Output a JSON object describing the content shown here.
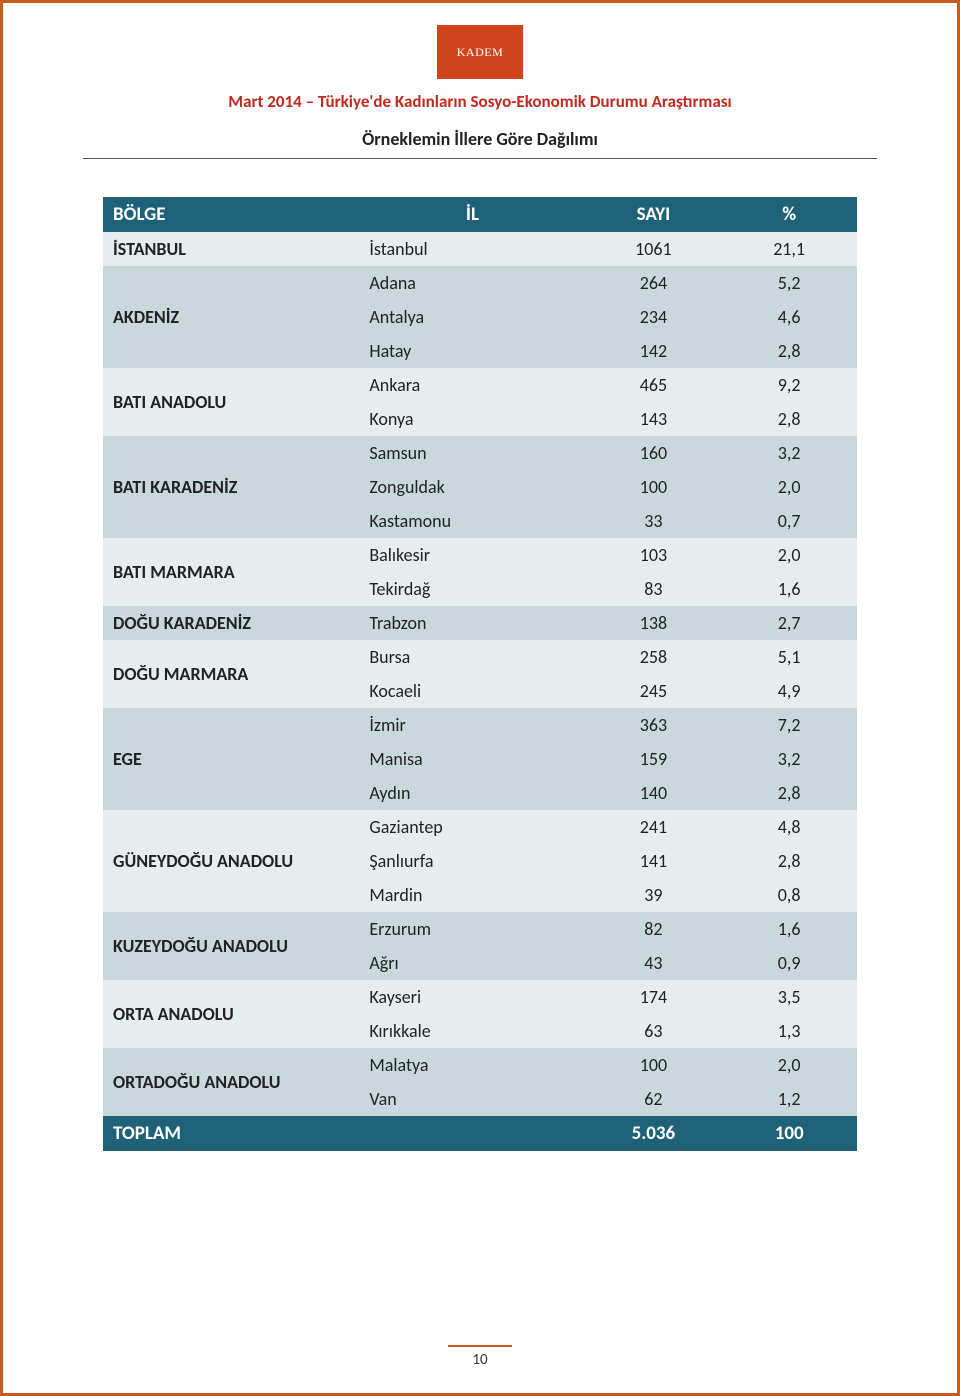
{
  "logo_text": "KADEM",
  "doc_title": "Mart 2014 – Türkiye'de Kadınların Sosyo-Ekonomik Durumu Araştırması",
  "section_title": "Örneklemin İllere Göre Dağılımı",
  "page_number": "10",
  "colors": {
    "page_border": "#c75a1f",
    "logo_bg": "#d1451e",
    "title_text": "#c22a1f",
    "header_row_bg": "#1f6177",
    "header_row_text": "#ffffff",
    "band_a": "#e6edef",
    "band_b": "#c9d8dd",
    "text": "#222222"
  },
  "table": {
    "headers": {
      "region": "BÖLGE",
      "il": "İL",
      "count": "SAYI",
      "pct": "%"
    },
    "footer": {
      "label": "TOPLAM",
      "count": "5.036",
      "pct": "100"
    },
    "groups": [
      {
        "region": "İSTANBUL",
        "band": "a",
        "rows": [
          {
            "il": "İstanbul",
            "count": "1061",
            "pct": "21,1"
          }
        ]
      },
      {
        "region": "AKDENİZ",
        "band": "b",
        "rows": [
          {
            "il": "Adana",
            "count": "264",
            "pct": "5,2"
          },
          {
            "il": "Antalya",
            "count": "234",
            "pct": "4,6"
          },
          {
            "il": "Hatay",
            "count": "142",
            "pct": "2,8"
          }
        ]
      },
      {
        "region": "BATI ANADOLU",
        "band": "a",
        "rows": [
          {
            "il": "Ankara",
            "count": "465",
            "pct": "9,2"
          },
          {
            "il": "Konya",
            "count": "143",
            "pct": "2,8"
          }
        ]
      },
      {
        "region": "BATI KARADENİZ",
        "band": "b",
        "rows": [
          {
            "il": "Samsun",
            "count": "160",
            "pct": "3,2"
          },
          {
            "il": "Zonguldak",
            "count": "100",
            "pct": "2,0"
          },
          {
            "il": "Kastamonu",
            "count": "33",
            "pct": "0,7"
          }
        ]
      },
      {
        "region": "BATI MARMARA",
        "band": "a",
        "rows": [
          {
            "il": "Balıkesir",
            "count": "103",
            "pct": "2,0"
          },
          {
            "il": "Tekirdağ",
            "count": "83",
            "pct": "1,6"
          }
        ]
      },
      {
        "region": "DOĞU KARADENİZ",
        "band": "b",
        "rows": [
          {
            "il": "Trabzon",
            "count": "138",
            "pct": "2,7"
          }
        ]
      },
      {
        "region": "DOĞU MARMARA",
        "band": "a",
        "rows": [
          {
            "il": "Bursa",
            "count": "258",
            "pct": "5,1"
          },
          {
            "il": "Kocaeli",
            "count": "245",
            "pct": "4,9"
          }
        ]
      },
      {
        "region": "EGE",
        "band": "b",
        "rows": [
          {
            "il": "İzmir",
            "count": "363",
            "pct": "7,2"
          },
          {
            "il": "Manisa",
            "count": "159",
            "pct": "3,2"
          },
          {
            "il": "Aydın",
            "count": "140",
            "pct": "2,8"
          }
        ]
      },
      {
        "region": "GÜNEYDOĞU ANADOLU",
        "band": "a",
        "rows": [
          {
            "il": "Gaziantep",
            "count": "241",
            "pct": "4,8"
          },
          {
            "il": "Şanlıurfa",
            "count": "141",
            "pct": "2,8"
          },
          {
            "il": "Mardin",
            "count": "39",
            "pct": "0,8"
          }
        ]
      },
      {
        "region": "KUZEYDOĞU ANADOLU",
        "band": "b",
        "rows": [
          {
            "il": "Erzurum",
            "count": "82",
            "pct": "1,6"
          },
          {
            "il": "Ağrı",
            "count": "43",
            "pct": "0,9"
          }
        ]
      },
      {
        "region": "ORTA ANADOLU",
        "band": "a",
        "rows": [
          {
            "il": "Kayseri",
            "count": "174",
            "pct": "3,5"
          },
          {
            "il": "Kırıkkale",
            "count": "63",
            "pct": "1,3"
          }
        ]
      },
      {
        "region": "ORTADOĞU ANADOLU",
        "band": "b",
        "rows": [
          {
            "il": "Malatya",
            "count": "100",
            "pct": "2,0"
          },
          {
            "il": "Van",
            "count": "62",
            "pct": "1,2"
          }
        ]
      }
    ]
  }
}
